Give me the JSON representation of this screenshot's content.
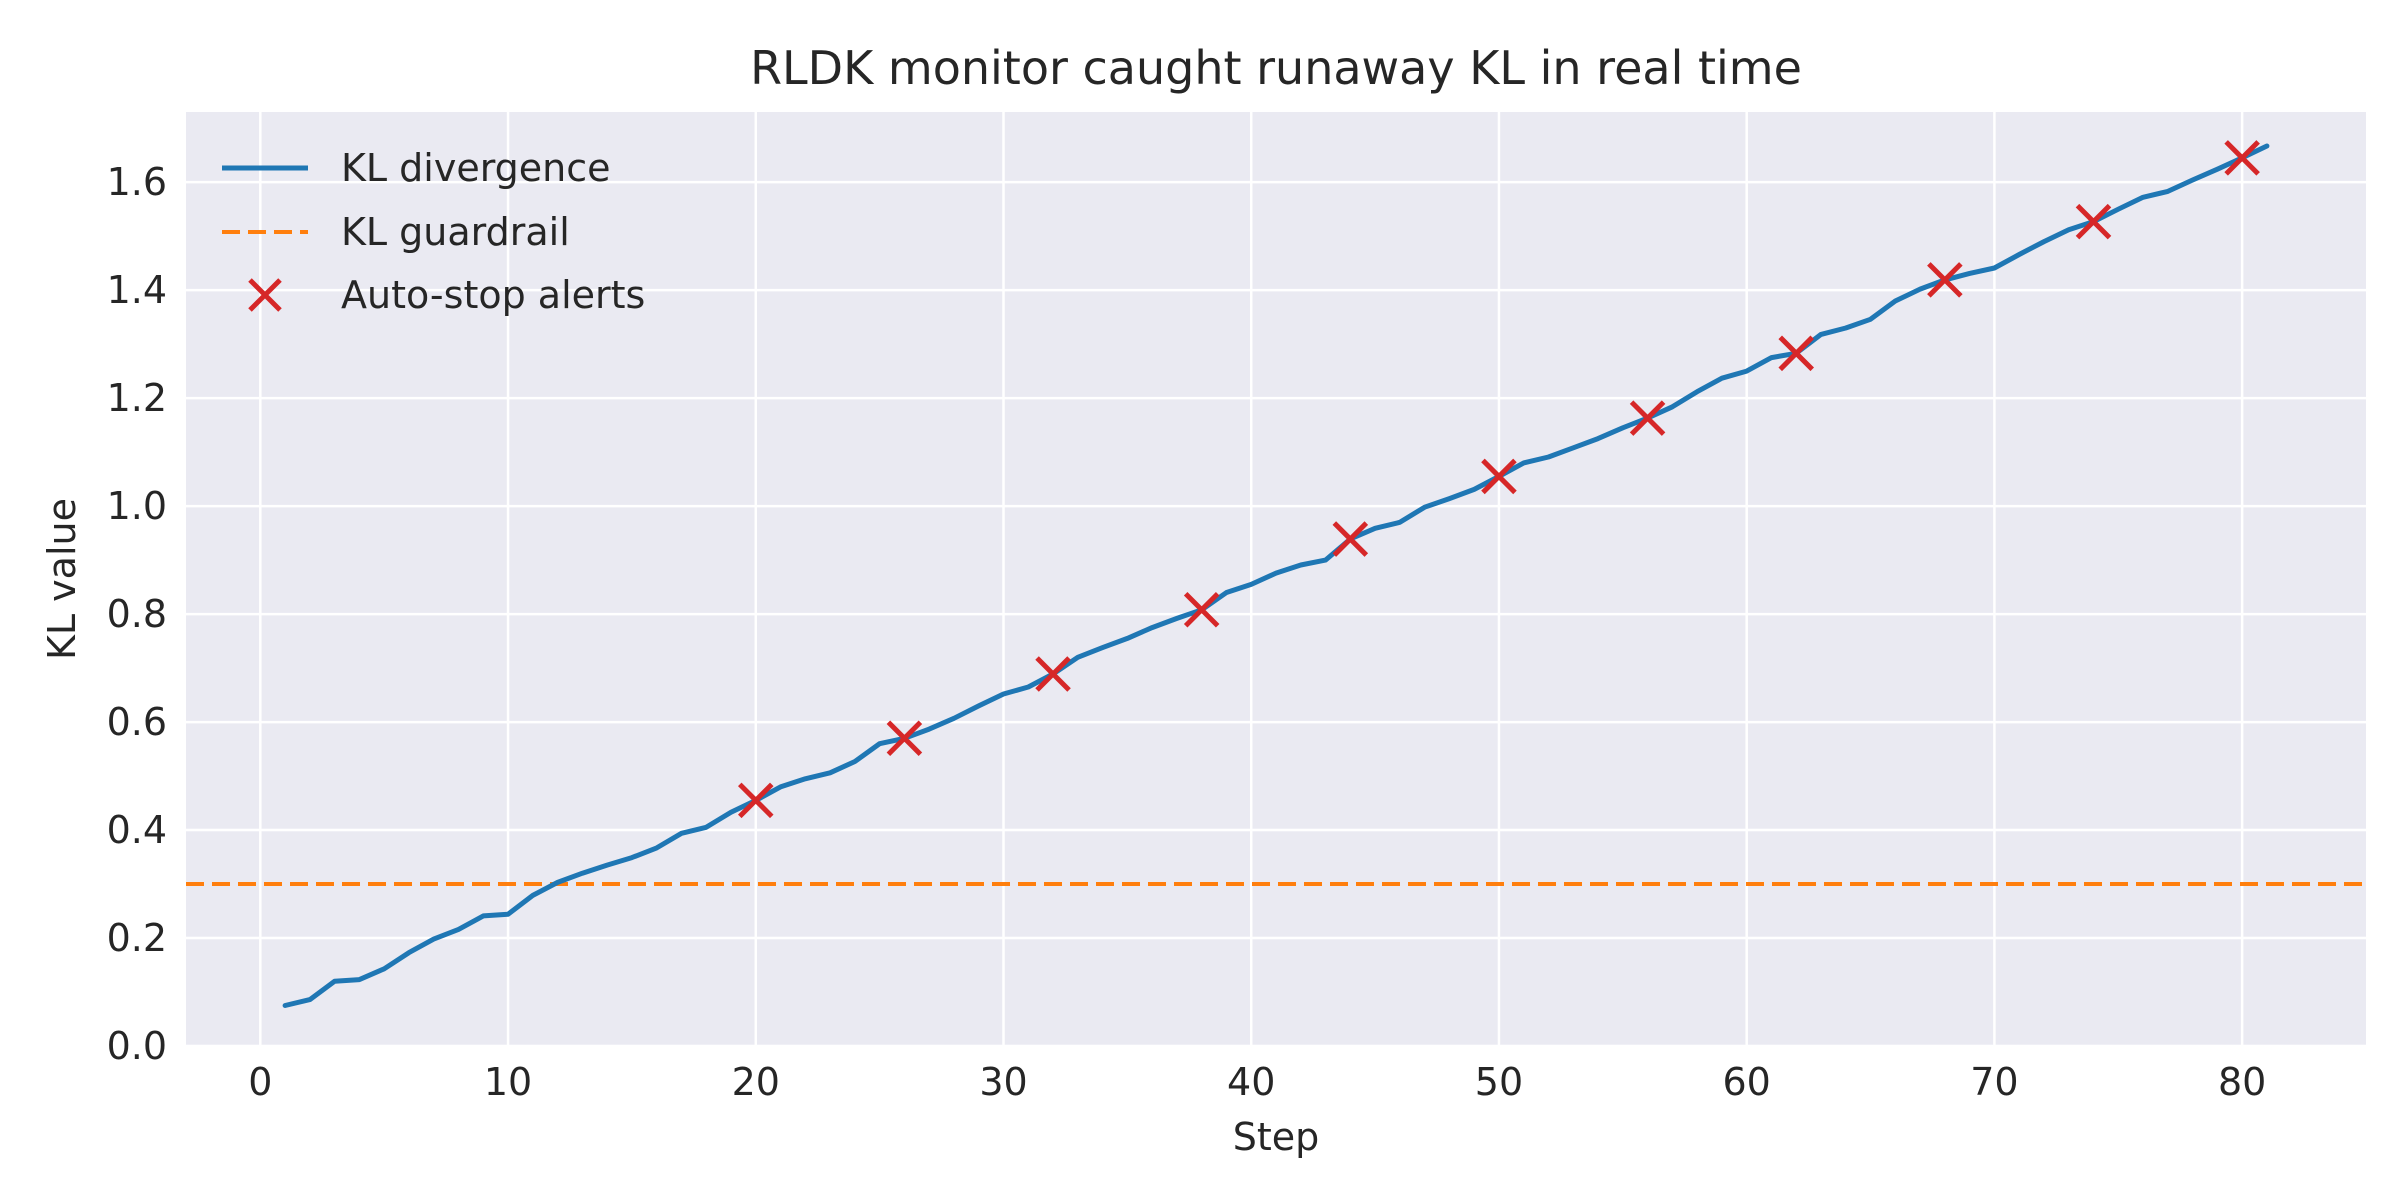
{
  "chart_data": {
    "type": "line",
    "title": "RLDK monitor caught runaway KL in real time",
    "xlabel": "Step",
    "ylabel": "KL value",
    "xlim": [
      -3,
      85
    ],
    "ylim": [
      0,
      1.73
    ],
    "xticks": [
      0,
      10,
      20,
      30,
      40,
      50,
      60,
      70,
      80
    ],
    "yticks": [
      0.0,
      0.2,
      0.4,
      0.6,
      0.8,
      1.0,
      1.2,
      1.4,
      1.6
    ],
    "xtick_labels": [
      "0",
      "10",
      "20",
      "30",
      "40",
      "50",
      "60",
      "70",
      "80"
    ],
    "ytick_labels": [
      "0.0",
      "0.2",
      "0.4",
      "0.6",
      "0.8",
      "1.0",
      "1.2",
      "1.4",
      "1.6"
    ],
    "grid": true,
    "legend_position": "top-left",
    "legend": [
      {
        "label": "KL divergence",
        "kind": "line",
        "color": "#1f77b4"
      },
      {
        "label": "KL guardrail",
        "kind": "dashed-line",
        "color": "#ff7f0e"
      },
      {
        "label": "Auto-stop alerts",
        "kind": "x-marker",
        "color": "#d62728"
      }
    ],
    "series": [
      {
        "name": "KL divergence",
        "color": "#1f77b4",
        "x": [
          1,
          2,
          3,
          4,
          5,
          6,
          7,
          8,
          9,
          10,
          11,
          12,
          13,
          14,
          15,
          16,
          17,
          18,
          19,
          20,
          21,
          22,
          23,
          24,
          25,
          26,
          27,
          28,
          29,
          30,
          31,
          32,
          33,
          34,
          35,
          36,
          37,
          38,
          39,
          40,
          41,
          42,
          43,
          44,
          45,
          46,
          47,
          48,
          49,
          50,
          51,
          52,
          53,
          54,
          55,
          56,
          57,
          58,
          59,
          60,
          61,
          62,
          63,
          64,
          65,
          66,
          67,
          68,
          69,
          70,
          71,
          72,
          73,
          74,
          75,
          76,
          77,
          78,
          79,
          80,
          81
        ],
        "y": [
          0.075,
          0.086,
          0.12,
          0.123,
          0.143,
          0.173,
          0.198,
          0.216,
          0.241,
          0.244,
          0.279,
          0.303,
          0.32,
          0.335,
          0.349,
          0.367,
          0.394,
          0.405,
          0.433,
          0.455,
          0.48,
          0.495,
          0.506,
          0.527,
          0.56,
          0.57,
          0.587,
          0.607,
          0.63,
          0.652,
          0.665,
          0.689,
          0.72,
          0.738,
          0.755,
          0.775,
          0.792,
          0.808,
          0.84,
          0.855,
          0.876,
          0.891,
          0.9,
          0.939,
          0.959,
          0.97,
          0.998,
          1.014,
          1.031,
          1.055,
          1.08,
          1.091,
          1.108,
          1.125,
          1.145,
          1.163,
          1.184,
          1.212,
          1.237,
          1.25,
          1.275,
          1.283,
          1.318,
          1.33,
          1.346,
          1.38,
          1.402,
          1.419,
          1.431,
          1.441,
          1.466,
          1.49,
          1.512,
          1.527,
          1.55,
          1.572,
          1.583,
          1.604,
          1.624,
          1.645,
          1.667
        ]
      },
      {
        "name": "KL guardrail",
        "color": "#ff7f0e",
        "y_constant": 0.3
      },
      {
        "name": "Auto-stop alerts",
        "color": "#d62728",
        "x": [
          20,
          26,
          32,
          38,
          44,
          50,
          56,
          62,
          68,
          74,
          80
        ],
        "y": [
          0.455,
          0.57,
          0.689,
          0.808,
          0.939,
          1.055,
          1.163,
          1.283,
          1.419,
          1.527,
          1.645
        ]
      }
    ]
  }
}
